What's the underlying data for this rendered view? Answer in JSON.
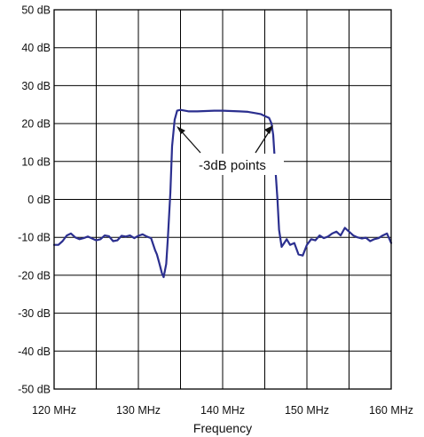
{
  "chart_data": {
    "type": "line",
    "xlabel": "Frequency",
    "xlim": [
      120,
      160
    ],
    "ylim": [
      -50,
      50
    ],
    "x_ticks": [
      "120 MHz",
      "130 MHz",
      "140 MHz",
      "150 MHz",
      "160 MHz"
    ],
    "y_ticks": [
      "50 dB",
      "40 dB",
      "30 dB",
      "20 dB",
      "10 dB",
      "0 dB",
      "-10 dB",
      "-20 dB",
      "-30 dB",
      "-40 dB",
      "-50 dB"
    ],
    "grid": true,
    "annotation": "-3dB points",
    "colors": {
      "line": "#2b2f8f",
      "grid": "#000000",
      "plot_bg": "#ffffff"
    },
    "series": [
      {
        "x": [
          120,
          120.5,
          121,
          121.5,
          122,
          122.5,
          123,
          123.5,
          124,
          124.5,
          125,
          125.5,
          126,
          126.5,
          127,
          127.5,
          128,
          128.5,
          129,
          129.5,
          130,
          130.5,
          131,
          131.5,
          132,
          132.2,
          132.5,
          132.8,
          133,
          133.3,
          133.5,
          133.8,
          134,
          134.3,
          134.6,
          135,
          135.5,
          136,
          137,
          138,
          139,
          140,
          141,
          142,
          143,
          144,
          144.5,
          145,
          145.5,
          145.8,
          146,
          146.2,
          146.5,
          146.7,
          147,
          147.3,
          147.6,
          148,
          148.5,
          149,
          149.5,
          150,
          150.5,
          151,
          151.5,
          152,
          152.5,
          153,
          153.5,
          154,
          154.5,
          155,
          155.5,
          156,
          156.5,
          157,
          157.5,
          158,
          158.5,
          159,
          159.5,
          160
        ],
        "y": [
          -12,
          -12,
          -11,
          -9.5,
          -9,
          -10,
          -10.5,
          -10.2,
          -9.8,
          -10.3,
          -10.8,
          -10.5,
          -9.5,
          -9.7,
          -11,
          -10.8,
          -9.6,
          -9.8,
          -9.5,
          -10.2,
          -9.6,
          -9.2,
          -9.8,
          -10.2,
          -13.5,
          -14.5,
          -17,
          -19.5,
          -20.5,
          -17,
          -10,
          2,
          14,
          21,
          23.4,
          23.6,
          23.4,
          23.2,
          23.2,
          23.3,
          23.4,
          23.4,
          23.3,
          23.2,
          23.1,
          22.7,
          22.5,
          22,
          21.5,
          20,
          17,
          10,
          0,
          -8,
          -12.5,
          -11.5,
          -10.5,
          -12,
          -11.5,
          -14.5,
          -14.8,
          -12,
          -10.5,
          -10.8,
          -9.5,
          -10.2,
          -9.8,
          -9,
          -8.5,
          -9.5,
          -7.5,
          -8.5,
          -9.5,
          -10,
          -10.3,
          -10.1,
          -11,
          -10.5,
          -10.2,
          -9.5,
          -9,
          -11.5
        ]
      }
    ]
  }
}
